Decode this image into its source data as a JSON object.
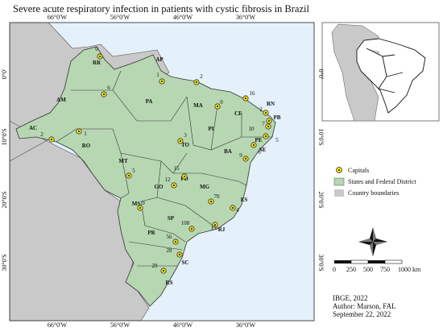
{
  "title": "Severe acute respiratory infection in patients with cystic fibrosis in Brazil",
  "map": {
    "lon_labels": [
      "66°0'W",
      "56°0'W",
      "46°0'W",
      "36°0'W"
    ],
    "lat_labels": [
      "0°0'",
      "10°0'S",
      "20°0'S",
      "30°0'S"
    ],
    "states": [
      "RR",
      "AP",
      "AM",
      "PA",
      "MA",
      "CE",
      "RN",
      "PB",
      "PE",
      "SE",
      "BA",
      "PI",
      "TO",
      "AC",
      "RO",
      "MT",
      "GO",
      "FD",
      "MG",
      "ES",
      "MS",
      "SP",
      "RJ",
      "PR",
      "SC",
      "RS"
    ],
    "capitals": [
      "0",
      "6",
      "1",
      "2",
      "0",
      "16",
      "2",
      "7",
      "10",
      "5",
      "6",
      "9",
      "3",
      "1",
      "2",
      "5",
      "15",
      "12",
      "70",
      "4",
      "108",
      "15",
      "9",
      "56",
      "28",
      "29"
    ]
  },
  "legend": {
    "items": [
      "Capitals",
      "States and Federal District",
      "Country boundaries"
    ]
  },
  "scale": {
    "labels": [
      "0",
      "250",
      "500",
      "750",
      "1000 km"
    ]
  },
  "source": {
    "lines": [
      "IBGE, 2022",
      "Author: Marson, FAL",
      "September 22, 2022"
    ]
  }
}
